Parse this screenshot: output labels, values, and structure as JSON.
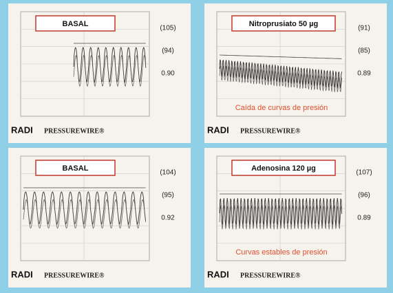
{
  "panels": [
    {
      "label": "BASAL",
      "values": [
        "(105)",
        "(94)",
        "0.90"
      ],
      "brand": "RADI",
      "product": "PRESSUREWIRE®"
    },
    {
      "label": "Nitroprusiato 50 µg",
      "values": [
        "(91)",
        "(85)",
        "0.89"
      ],
      "note": "Caída de curvas de presión",
      "brand": "RADI",
      "product": "PRESSUREWIRE®"
    },
    {
      "label": "BASAL",
      "values": [
        "(104)",
        "(95)",
        "0.92"
      ],
      "brand": "RADI",
      "product": "PRESSUREWIRE®"
    },
    {
      "label": "Adenosina 120 µg",
      "values": [
        "(107)",
        "(96)",
        "0.89"
      ],
      "note": "Curvas estables de presión",
      "brand": "RADI",
      "product": "PRESSUREWIRE®"
    }
  ]
}
